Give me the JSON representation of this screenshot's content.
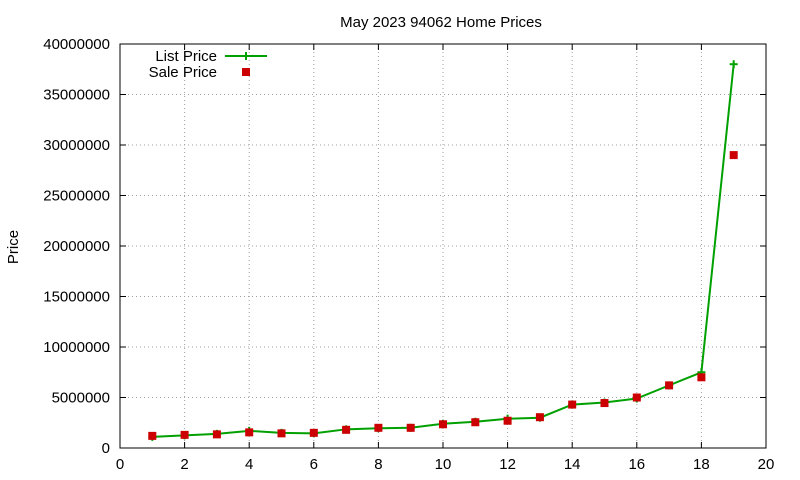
{
  "chart_data": {
    "type": "line",
    "title": "May 2023 94062 Home Prices",
    "xlabel": "",
    "ylabel": "Price",
    "xlim": [
      0,
      20
    ],
    "ylim": [
      0,
      40000000
    ],
    "xticks": [
      0,
      2,
      4,
      6,
      8,
      10,
      12,
      14,
      16,
      18,
      20
    ],
    "yticks": [
      0,
      5000000,
      10000000,
      15000000,
      20000000,
      25000000,
      30000000,
      35000000,
      40000000
    ],
    "grid": true,
    "legend_position": "top-left",
    "series": [
      {
        "name": "List Price",
        "style": "line-with-plus-markers",
        "color": "#00a000",
        "x": [
          1,
          2,
          3,
          4,
          5,
          6,
          7,
          8,
          9,
          10,
          11,
          12,
          13,
          14,
          15,
          16,
          17,
          18,
          19
        ],
        "y": [
          1100000,
          1250000,
          1400000,
          1700000,
          1500000,
          1450000,
          1850000,
          1950000,
          2000000,
          2400000,
          2600000,
          2900000,
          3000000,
          4300000,
          4500000,
          4900000,
          6200000,
          7500000,
          38000000
        ]
      },
      {
        "name": "Sale Price",
        "style": "square-markers",
        "color": "#cc0000",
        "x": [
          1,
          2,
          3,
          4,
          5,
          6,
          7,
          8,
          9,
          10,
          11,
          12,
          13,
          14,
          15,
          16,
          17,
          18,
          19
        ],
        "y": [
          1200000,
          1300000,
          1350000,
          1550000,
          1450000,
          1500000,
          1800000,
          2000000,
          2000000,
          2350000,
          2550000,
          2700000,
          3050000,
          4300000,
          4450000,
          5000000,
          6200000,
          7000000,
          29000000
        ]
      }
    ]
  }
}
